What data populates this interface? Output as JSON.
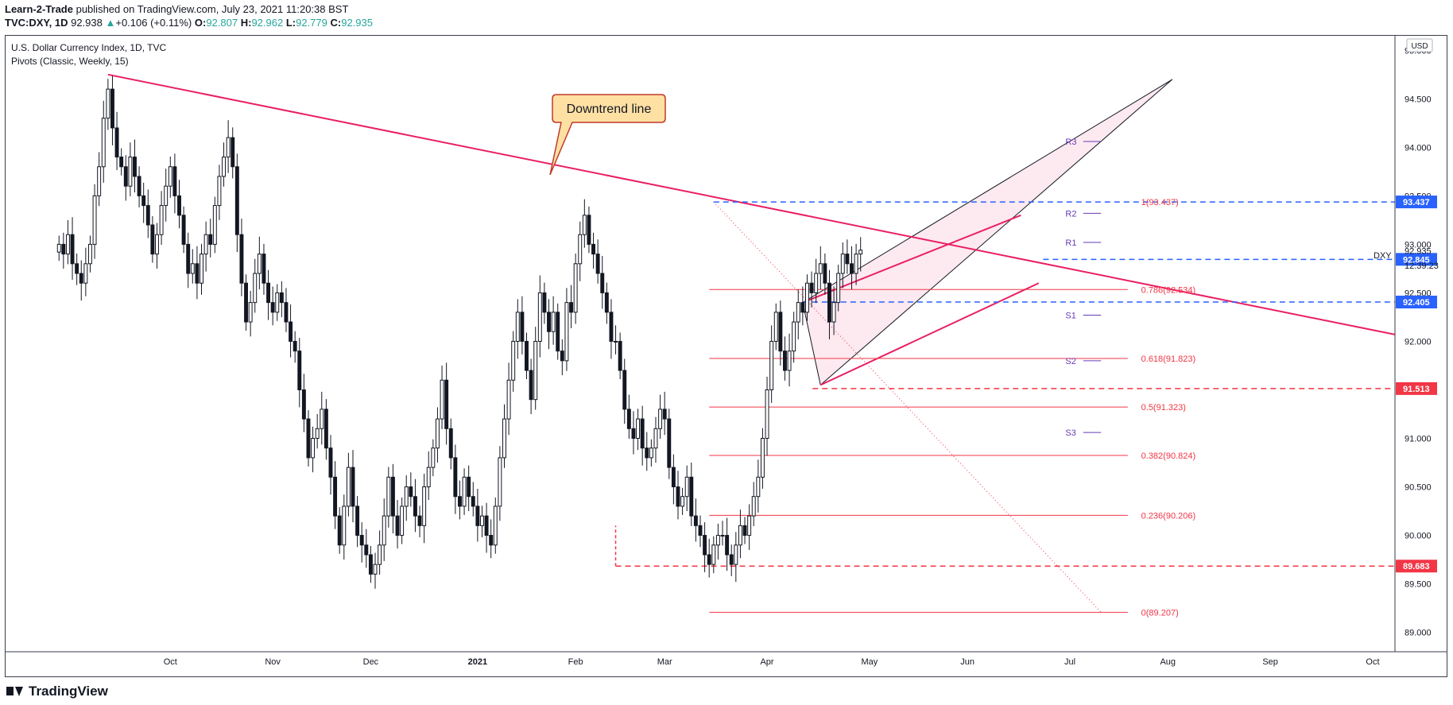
{
  "header": {
    "author": "Learn-2-Trade",
    "published": " published on TradingView.com, July 23, 2021 11:20:38 BST",
    "symbol": "TVC:DXY, 1D",
    "last": "92.938",
    "change": "+0.106 (+0.11%)",
    "o_label": "O:",
    "o": "92.807",
    "h_label": "H:",
    "h": "92.962",
    "l_label": "L:",
    "l": "92.779",
    "c_label": "C:",
    "c": "92.935"
  },
  "chart_labels": {
    "title": "U.S. Dollar Currency Index, 1D, TVC",
    "indicator": "Pivots (Classic, Weekly, 15)",
    "callout": "Downtrend line",
    "currency": "USD",
    "ticker": "DXY",
    "countdown": "12:39:23"
  },
  "footer": {
    "brand": "TradingView"
  },
  "chart_data": {
    "type": "candlestick",
    "title": "U.S. Dollar Currency Index, 1D, TVC",
    "ylim": [
      88.8,
      95.15
    ],
    "y_ticks": [
      89.0,
      89.5,
      90.0,
      90.5,
      91.0,
      91.5,
      92.0,
      92.5,
      93.0,
      93.5,
      94.0,
      94.5,
      95.0
    ],
    "x_ticks": [
      {
        "label": "Oct",
        "i": 25
      },
      {
        "label": "Nov",
        "i": 48
      },
      {
        "label": "Dec",
        "i": 70
      },
      {
        "label": "2021",
        "i": 94
      },
      {
        "label": "Feb",
        "i": 116
      },
      {
        "label": "Mar",
        "i": 136
      },
      {
        "label": "Apr",
        "i": 159
      },
      {
        "label": "May",
        "i": 182
      },
      {
        "label": "Jun",
        "i": 204
      },
      {
        "label": "Jul",
        "i": 227
      },
      {
        "label": "Aug",
        "i": 249
      },
      {
        "label": "Sep",
        "i": 272
      },
      {
        "label": "Oct",
        "i": 295
      }
    ],
    "x_range": [
      -12,
      300
    ],
    "closes": [
      93.0,
      92.9,
      93.1,
      92.8,
      92.7,
      92.6,
      92.8,
      93.0,
      93.5,
      93.8,
      94.3,
      94.6,
      94.2,
      93.9,
      93.8,
      93.6,
      93.9,
      93.7,
      93.5,
      93.4,
      93.2,
      92.9,
      93.1,
      93.4,
      93.6,
      93.8,
      93.5,
      93.3,
      93.0,
      92.7,
      92.8,
      92.6,
      92.9,
      93.1,
      93.0,
      93.4,
      93.7,
      93.9,
      94.1,
      93.8,
      93.1,
      92.6,
      92.2,
      92.4,
      92.7,
      92.9,
      92.6,
      92.4,
      92.3,
      92.5,
      92.4,
      92.2,
      92.0,
      91.9,
      91.5,
      91.2,
      90.8,
      91.0,
      91.1,
      91.3,
      90.9,
      90.6,
      90.2,
      89.9,
      90.3,
      90.7,
      90.3,
      90.0,
      89.9,
      89.8,
      89.6,
      89.7,
      89.9,
      90.2,
      90.6,
      90.2,
      90.0,
      90.3,
      90.5,
      90.4,
      90.2,
      90.1,
      90.5,
      90.7,
      90.9,
      91.2,
      91.6,
      91.1,
      90.8,
      90.4,
      90.3,
      90.6,
      90.4,
      90.3,
      90.1,
      90.2,
      90.0,
      89.9,
      90.3,
      90.8,
      91.2,
      91.6,
      92.0,
      92.3,
      92.0,
      91.7,
      91.4,
      92.0,
      92.5,
      92.3,
      92.1,
      92.3,
      91.9,
      91.8,
      92.4,
      92.3,
      92.8,
      93.1,
      93.3,
      93.0,
      92.9,
      92.7,
      92.5,
      92.3,
      92.0,
      92.0,
      91.7,
      91.3,
      91.1,
      91.0,
      91.2,
      90.9,
      90.8,
      90.9,
      91.1,
      91.3,
      91.2,
      90.7,
      90.5,
      90.3,
      90.4,
      90.6,
      90.2,
      90.1,
      90.0,
      89.8,
      89.7,
      89.9,
      90.0,
      90.0,
      89.8,
      89.7,
      89.9,
      90.1,
      90.0,
      90.2,
      90.4,
      90.6,
      91.0,
      91.5,
      92.0,
      92.3,
      91.9,
      91.7,
      91.9,
      92.2,
      92.4,
      92.3,
      92.6,
      92.5,
      92.7,
      92.8,
      92.6,
      92.2,
      92.4,
      92.7,
      92.9,
      92.8,
      92.7,
      92.9,
      92.94
    ],
    "pivots": [
      {
        "label": "R3",
        "value": 94.06
      },
      {
        "label": "R2",
        "value": 93.32
      },
      {
        "label": "R1",
        "value": 93.02
      },
      {
        "label": "P",
        "value": 92.845
      },
      {
        "label": "S1",
        "value": 92.27
      },
      {
        "label": "S2",
        "value": 91.8
      },
      {
        "label": "S3",
        "value": 91.06
      }
    ],
    "fibonacci": [
      {
        "label": "1(93.437)",
        "value": 93.437
      },
      {
        "label": "0.786(92.534)",
        "value": 92.534
      },
      {
        "label": "0.618(91.823)",
        "value": 91.823
      },
      {
        "label": "0.5(91.323)",
        "value": 91.323
      },
      {
        "label": "0.382(90.824)",
        "value": 90.824
      },
      {
        "label": "0.236(90.206)",
        "value": 90.206
      },
      {
        "label": "0(89.207)",
        "value": 89.207
      }
    ],
    "price_tags": [
      {
        "value": 93.437,
        "label": "93.437",
        "color": "#2962ff"
      },
      {
        "value": 92.845,
        "label": "92.845",
        "color": "#2962ff"
      },
      {
        "value": 92.405,
        "label": "92.405",
        "color": "#2962ff"
      },
      {
        "value": 91.513,
        "label": "91.513",
        "color": "#f23645"
      },
      {
        "value": 89.683,
        "label": "89.683",
        "color": "#f23645"
      }
    ],
    "last_price": {
      "value": 92.935,
      "label": "92.935"
    },
    "colors": {
      "up": "#ffffff",
      "down": "#131722",
      "downtrend": "#e91e63",
      "fib": "#f23645",
      "pivot": "#673ab7",
      "blue_dash": "#2962ff",
      "red_dash": "#f23645",
      "wedge_fill": "#fce4ec"
    }
  }
}
